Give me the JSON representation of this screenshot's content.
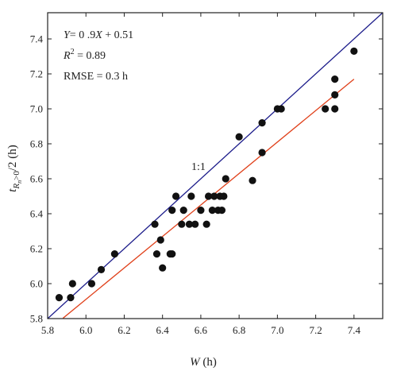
{
  "chart_data": {
    "type": "scatter",
    "title": "",
    "xlabel": {
      "main": "W",
      "unit": " (h)"
    },
    "ylabel": {
      "t": "t",
      "sub": "R",
      "subsub": "n",
      "sup_rest": ">0",
      "rest": "/2 (h)"
    },
    "xlim": [
      5.8,
      7.55
    ],
    "ylim": [
      5.8,
      7.55
    ],
    "xticks": [
      5.8,
      6.0,
      6.2,
      6.4,
      6.6,
      6.8,
      7.0,
      7.2,
      7.4
    ],
    "yticks": [
      5.8,
      6.0,
      6.2,
      6.4,
      6.6,
      6.8,
      7.0,
      7.2,
      7.4
    ],
    "xtick_labels": [
      "5.8",
      "6.0",
      "6.2",
      "6.4",
      "6.6",
      "6.8",
      "7.0",
      "7.2",
      "7.4"
    ],
    "ytick_labels": [
      "5.8",
      "6.0",
      "6.2",
      "6.4",
      "6.6",
      "6.8",
      "7.0",
      "7.2",
      "7.4"
    ],
    "grid": false,
    "annotations": {
      "equation": {
        "y": "Y",
        "eq1": "= 0 .9",
        "x": "X",
        "eq2": " + 0.51"
      },
      "r2": {
        "r": "R",
        "sup": "2",
        "rest": " = 0.89"
      },
      "rmse": "RMSE = 0.3 h",
      "line_label": "1:1"
    },
    "lines": [
      {
        "name": "1:1",
        "color": "#1b1b8a",
        "x": [
          5.8,
          7.55
        ],
        "y": [
          5.8,
          7.55
        ]
      },
      {
        "name": "fit",
        "color": "#e0401a",
        "x": [
          5.88,
          7.4
        ],
        "y": [
          5.802,
          7.17
        ]
      }
    ],
    "points": [
      [
        5.86,
        5.92
      ],
      [
        5.92,
        5.92
      ],
      [
        5.93,
        6.0
      ],
      [
        6.03,
        6.0
      ],
      [
        6.08,
        6.08
      ],
      [
        6.15,
        6.17
      ],
      [
        6.36,
        6.34
      ],
      [
        6.37,
        6.17
      ],
      [
        6.39,
        6.25
      ],
      [
        6.4,
        6.09
      ],
      [
        6.44,
        6.17
      ],
      [
        6.45,
        6.17
      ],
      [
        6.45,
        6.42
      ],
      [
        6.47,
        6.5
      ],
      [
        6.5,
        6.34
      ],
      [
        6.51,
        6.42
      ],
      [
        6.54,
        6.34
      ],
      [
        6.55,
        6.5
      ],
      [
        6.57,
        6.34
      ],
      [
        6.6,
        6.42
      ],
      [
        6.63,
        6.34
      ],
      [
        6.64,
        6.5
      ],
      [
        6.66,
        6.42
      ],
      [
        6.67,
        6.5
      ],
      [
        6.69,
        6.42
      ],
      [
        6.7,
        6.5
      ],
      [
        6.71,
        6.42
      ],
      [
        6.72,
        6.5
      ],
      [
        6.73,
        6.6
      ],
      [
        6.8,
        6.84
      ],
      [
        6.87,
        6.59
      ],
      [
        6.92,
        6.75
      ],
      [
        6.92,
        6.92
      ],
      [
        7.0,
        7.0
      ],
      [
        7.02,
        7.0
      ],
      [
        7.25,
        7.0
      ],
      [
        7.3,
        7.0
      ],
      [
        7.3,
        7.08
      ],
      [
        7.3,
        7.17
      ],
      [
        7.4,
        7.33
      ]
    ],
    "colors": {
      "points": "#111111",
      "axis": "#222222"
    }
  }
}
